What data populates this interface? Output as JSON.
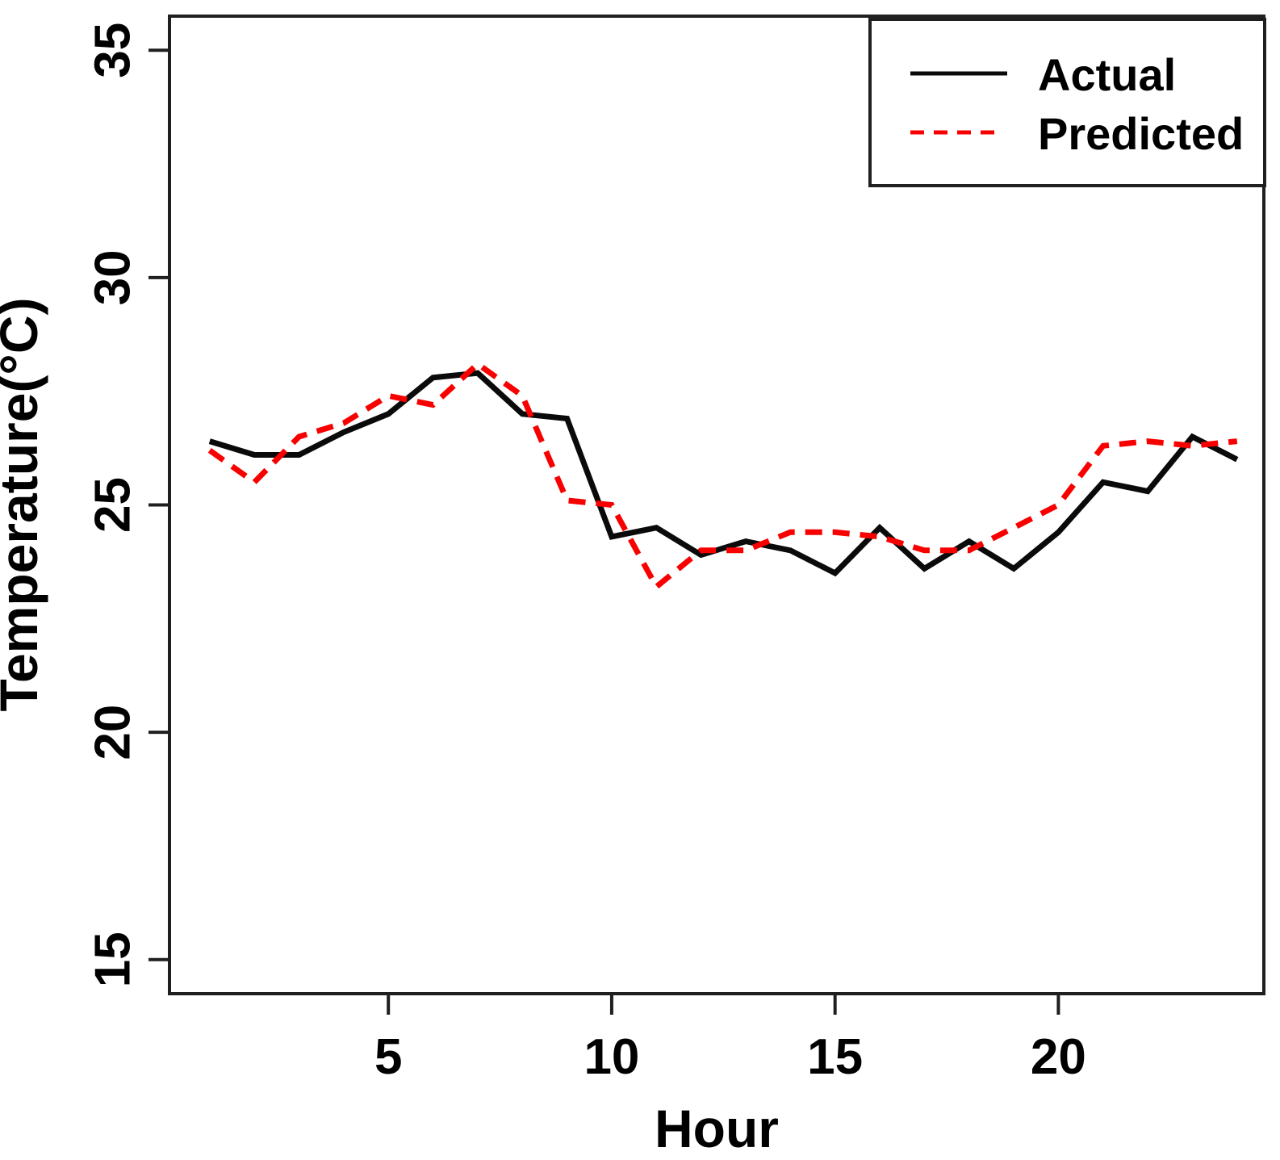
{
  "figure": {
    "background": "#ffffff",
    "frame_color": "#1f1f1f",
    "text_color": "#000000"
  },
  "chart_data": {
    "type": "line",
    "title": "",
    "xlabel": "Hour",
    "ylabel": "Temperature(°C)",
    "x": [
      1,
      2,
      3,
      4,
      5,
      6,
      7,
      8,
      9,
      10,
      11,
      12,
      13,
      14,
      15,
      16,
      17,
      18,
      19,
      20,
      21,
      22,
      23,
      24
    ],
    "series": [
      {
        "name": "Actual",
        "color": "#0a0a0a",
        "line_style": "solid",
        "values": [
          26.4,
          26.1,
          26.1,
          26.6,
          27.0,
          27.8,
          27.9,
          27.0,
          26.9,
          24.3,
          24.5,
          23.9,
          24.2,
          24.0,
          23.5,
          24.5,
          23.6,
          24.2,
          23.6,
          24.4,
          25.5,
          25.3,
          26.5,
          26.0
        ]
      },
      {
        "name": "Predicted",
        "color": "#f80000",
        "line_style": "dashed",
        "values": [
          26.2,
          25.5,
          26.5,
          26.8,
          27.4,
          27.2,
          28.1,
          27.4,
          25.1,
          25.0,
          23.2,
          24.0,
          24.0,
          24.4,
          24.4,
          24.3,
          24.0,
          24.0,
          24.5,
          25.0,
          26.3,
          26.4,
          26.3,
          26.4
        ]
      }
    ],
    "x_ticks": [
      5,
      10,
      15,
      20
    ],
    "y_ticks": [
      15,
      20,
      25,
      30,
      35
    ],
    "xlim": [
      0.1,
      24.6
    ],
    "ylim": [
      14.25,
      35.75
    ],
    "grid": false,
    "legend_position": "top-right"
  }
}
